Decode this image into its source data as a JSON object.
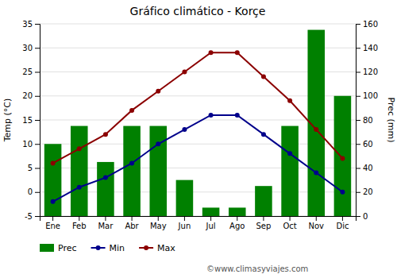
{
  "chart_data": {
    "type": "bar",
    "title": "Gráfico climático - Korçe",
    "categories": [
      "Ene",
      "Feb",
      "Mar",
      "Abr",
      "May",
      "Jun",
      "Jul",
      "Ago",
      "Sep",
      "Oct",
      "Nov",
      "Dic"
    ],
    "series": [
      {
        "name": "Prec",
        "type": "bar",
        "axis": "y2",
        "color": "#008000",
        "values": [
          60,
          75,
          45,
          75,
          75,
          30,
          7,
          7,
          25,
          75,
          155,
          100
        ]
      },
      {
        "name": "Min",
        "type": "line",
        "color": "#00008B",
        "marker": "circle",
        "values": [
          -2,
          1,
          3,
          6,
          10,
          13,
          16,
          16,
          12,
          8,
          4,
          0
        ]
      },
      {
        "name": "Max",
        "type": "line",
        "color": "#8B0000",
        "marker": "circle",
        "values": [
          6,
          9,
          12,
          17,
          21,
          25,
          29,
          29,
          24,
          19,
          13,
          7
        ]
      }
    ],
    "ylim": [
      -5,
      35
    ],
    "yticks": [
      -5,
      0,
      5,
      10,
      15,
      20,
      25,
      30,
      35
    ],
    "y2lim": [
      0,
      160
    ],
    "y2ticks": [
      0,
      20,
      40,
      60,
      80,
      100,
      120,
      140,
      160
    ],
    "ylabel": "Temp (°C)",
    "y2label": "Prec (mm)",
    "grid": true,
    "legend": "bottom",
    "annotations": [
      "©www.climasyviajes.com"
    ]
  }
}
